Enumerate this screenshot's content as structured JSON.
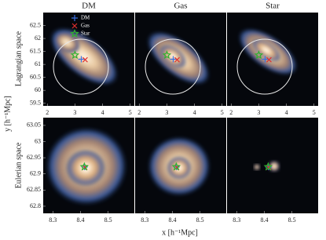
{
  "figure": {
    "xlabel": "x [h⁻¹Mpc]",
    "ylabel": "y [h⁻¹Mpc]",
    "row_labels": [
      "Lagrangian space",
      "Eulerian space"
    ]
  },
  "chart_data": [
    {
      "type": "scatter",
      "title": "DM",
      "xlim": [
        1.85,
        5.15
      ],
      "xticks": [
        2,
        3,
        4,
        5
      ],
      "ylim": [
        59.4,
        63.0
      ],
      "yticks": [
        59.5,
        60,
        60.5,
        61,
        61.5,
        62,
        62.5
      ],
      "series": [
        {
          "name": "DM",
          "color": "#3a6fe0",
          "marker": "plus",
          "x": [
            3.23
          ],
          "y": [
            61.2
          ]
        },
        {
          "name": "Gas",
          "color": "#e03030",
          "marker": "x",
          "x": [
            3.37
          ],
          "y": [
            61.18
          ]
        },
        {
          "name": "Star",
          "color": "#30b030",
          "marker": "star",
          "x": [
            3.0
          ],
          "y": [
            61.36
          ]
        }
      ]
    },
    {
      "type": "scatter",
      "title": "Gas",
      "xlim": [
        1.85,
        5.15
      ],
      "xticks": [
        2,
        3,
        4,
        5
      ],
      "ylim": [
        59.4,
        63.0
      ],
      "series": [
        {
          "color": "#3a6fe0",
          "marker": "plus",
          "x": [
            3.23
          ],
          "y": [
            61.2
          ]
        },
        {
          "color": "#e03030",
          "marker": "x",
          "x": [
            3.37
          ],
          "y": [
            61.18
          ]
        },
        {
          "color": "#30b030",
          "marker": "star",
          "x": [
            3.0
          ],
          "y": [
            61.36
          ]
        }
      ]
    },
    {
      "type": "scatter",
      "title": "Star",
      "xlim": [
        1.85,
        5.15
      ],
      "xticks": [
        2,
        3,
        4,
        5
      ],
      "ylim": [
        59.4,
        63.0
      ],
      "series": [
        {
          "color": "#3a6fe0",
          "marker": "plus",
          "x": [
            3.23
          ],
          "y": [
            61.2
          ]
        },
        {
          "color": "#e03030",
          "marker": "x",
          "x": [
            3.37
          ],
          "y": [
            61.18
          ]
        },
        {
          "color": "#30b030",
          "marker": "star",
          "x": [
            3.0
          ],
          "y": [
            61.36
          ]
        }
      ]
    },
    {
      "type": "scatter",
      "xlim": [
        8.265,
        8.595
      ],
      "xticks": [
        8.3,
        8.4,
        8.5
      ],
      "ylim": [
        62.778,
        63.074
      ],
      "yticks": [
        62.8,
        62.85,
        62.9,
        62.95,
        63,
        63.05
      ],
      "series": [
        {
          "color": "#3a6fe0",
          "marker": "plus",
          "x": [
            8.415
          ],
          "y": [
            62.921
          ]
        },
        {
          "color": "#e03030",
          "marker": "x",
          "x": [
            8.416
          ],
          "y": [
            62.92
          ]
        },
        {
          "color": "#30b030",
          "marker": "star",
          "x": [
            8.414
          ],
          "y": [
            62.922
          ]
        }
      ]
    },
    {
      "type": "scatter",
      "xlim": [
        8.265,
        8.595
      ],
      "xticks": [
        8.3,
        8.4,
        8.5
      ],
      "ylim": [
        62.778,
        63.074
      ],
      "series": [
        {
          "color": "#3a6fe0",
          "marker": "plus",
          "x": [
            8.415
          ],
          "y": [
            62.921
          ]
        },
        {
          "color": "#e03030",
          "marker": "x",
          "x": [
            8.416
          ],
          "y": [
            62.92
          ]
        },
        {
          "color": "#30b030",
          "marker": "star",
          "x": [
            8.414
          ],
          "y": [
            62.922
          ]
        }
      ]
    },
    {
      "type": "scatter",
      "xlim": [
        8.265,
        8.595
      ],
      "xticks": [
        8.3,
        8.4,
        8.5
      ],
      "ylim": [
        62.778,
        63.074
      ],
      "series": [
        {
          "color": "#3a6fe0",
          "marker": "plus",
          "x": [
            8.415
          ],
          "y": [
            62.921
          ]
        },
        {
          "color": "#e03030",
          "marker": "x",
          "x": [
            8.416
          ],
          "y": [
            62.92
          ]
        },
        {
          "color": "#30b030",
          "marker": "star",
          "x": [
            8.414
          ],
          "y": [
            62.922
          ]
        }
      ]
    }
  ]
}
